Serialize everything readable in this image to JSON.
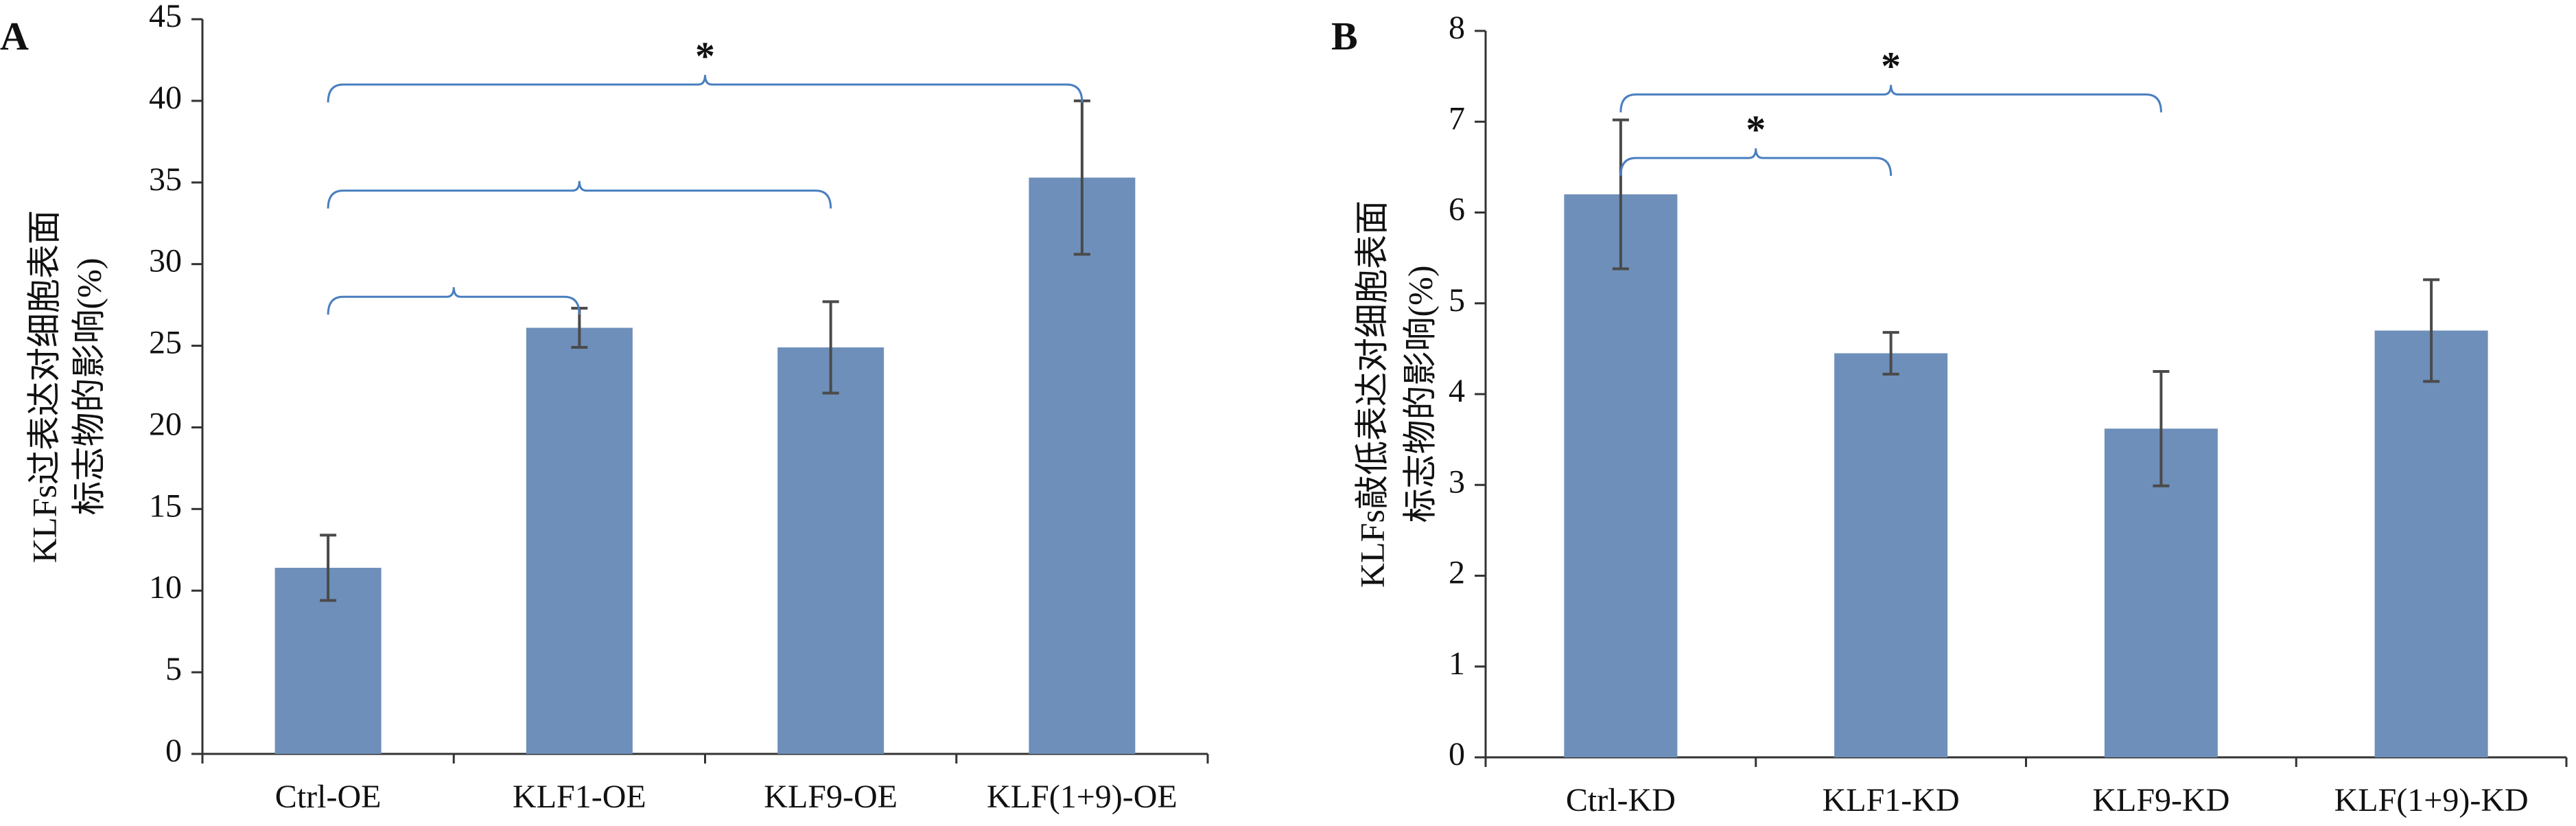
{
  "colors": {
    "bar": "#6e8fba",
    "axis": "#333333",
    "error": "#4a4a4a",
    "bracket": "#4a7fbf"
  },
  "chart_data": [
    {
      "panel": "A",
      "type": "bar",
      "ylabel_lines": [
        "KLFs过表达对细胞表面",
        "标志物的影响(%)"
      ],
      "categories": [
        "Ctrl-OE",
        "KLF1-OE",
        "KLF9-OE",
        "KLF(1+9)-OE"
      ],
      "values": [
        11.4,
        26.1,
        24.9,
        35.3
      ],
      "errors": [
        2.0,
        1.2,
        2.8,
        4.7
      ],
      "ylim": [
        0,
        45
      ],
      "yticks": [
        0,
        5,
        10,
        15,
        20,
        25,
        30,
        35,
        40,
        45
      ],
      "grid": false,
      "significance": [
        {
          "from": 0,
          "to": 3,
          "y": 41.0,
          "label": "*"
        },
        {
          "from": 0,
          "to": 2,
          "y": 34.5,
          "label": ""
        },
        {
          "from": 0,
          "to": 1,
          "y": 28.0,
          "label": ""
        }
      ]
    },
    {
      "panel": "B",
      "type": "bar",
      "ylabel_lines": [
        "KLFs敲低表达对细胞表面",
        "标志物的影响(%)"
      ],
      "categories": [
        "Ctrl-KD",
        "KLF1-KD",
        "KLF9-KD",
        "KLF(1+9)-KD"
      ],
      "values": [
        6.2,
        4.45,
        3.62,
        4.7
      ],
      "errors": [
        0.82,
        0.23,
        0.63,
        0.56
      ],
      "ylim": [
        0,
        8
      ],
      "yticks": [
        0,
        1,
        2,
        3,
        4,
        5,
        6,
        7,
        8
      ],
      "grid": false,
      "significance": [
        {
          "from": 0,
          "to": 2,
          "y": 7.3,
          "label": "*"
        },
        {
          "from": 0,
          "to": 1,
          "y": 6.6,
          "label": "*"
        }
      ]
    }
  ]
}
